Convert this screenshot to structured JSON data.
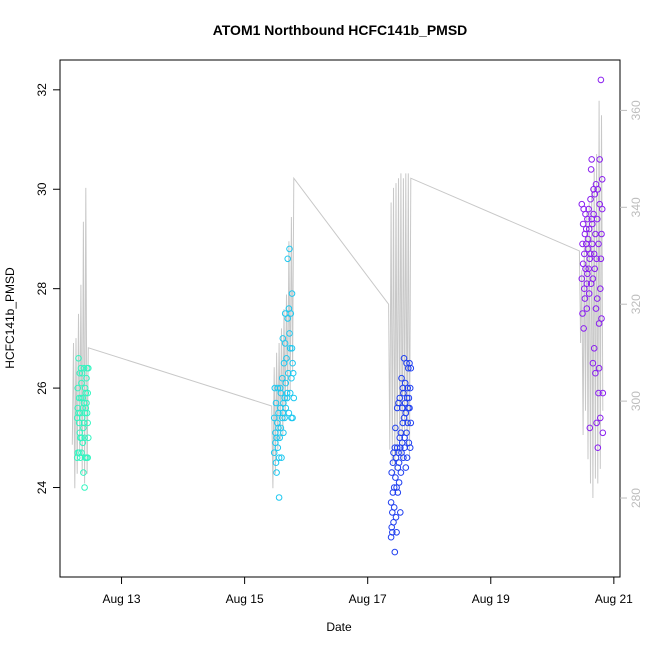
{
  "chart_data": {
    "type": "scatter",
    "title": "ATOM1 Northbound HCFC141b_PMSD",
    "xlabel": "Date",
    "ylabel": "HCFC141b_PMSD",
    "x_ticks": [
      "Aug 13",
      "Aug 15",
      "Aug 17",
      "Aug 19",
      "Aug 21"
    ],
    "x_tick_values": [
      13,
      15,
      17,
      19,
      21
    ],
    "xlim": [
      12.0,
      21.1
    ],
    "y_ticks": [
      24,
      26,
      28,
      30,
      32
    ],
    "ylim": [
      22.2,
      32.6
    ],
    "y2_ticks": [
      280,
      300,
      320,
      340,
      360
    ],
    "y2lim": [
      263.7,
      370.4
    ],
    "grid": false,
    "colors": {
      "day1": "#33f5c0",
      "day2": "#1ec8f0",
      "day3": "#1f3ff0",
      "day4": "#8a1ff0",
      "secondary_line": "#c8c8c8",
      "secondary_axis": "#bdbdbd"
    },
    "series": [
      {
        "group": "day1",
        "x": [
          12.28,
          12.28,
          12.29,
          12.29,
          12.29,
          12.3,
          12.3,
          12.31,
          12.31,
          12.31,
          12.32,
          12.32,
          12.33,
          12.33,
          12.33,
          12.34,
          12.34,
          12.35,
          12.35,
          12.35,
          12.36,
          12.36,
          12.37,
          12.37,
          12.37,
          12.38,
          12.38,
          12.39,
          12.39,
          12.39,
          12.4,
          12.4,
          12.41,
          12.41,
          12.41,
          12.42,
          12.42,
          12.43,
          12.43,
          12.43,
          12.44,
          12.44,
          12.45,
          12.45,
          12.45,
          12.46,
          12.46
        ],
        "y": [
          25.4,
          24.6,
          25.6,
          26.0,
          24.7,
          25.5,
          26.6,
          25.3,
          24.7,
          25.8,
          26.3,
          25.1,
          25.0,
          24.6,
          25.5,
          26.4,
          25.8,
          25.0,
          26.1,
          24.7,
          25.4,
          26.3,
          25.6,
          24.9,
          25.8,
          25.2,
          24.3,
          25.7,
          26.4,
          25.3,
          25.0,
          24.0,
          25.5,
          26.0,
          24.6,
          25.9,
          25.6,
          26.2,
          24.6,
          25.7,
          25.5,
          26.4,
          25.9,
          25.3,
          24.6,
          25.0,
          26.4
        ]
      },
      {
        "group": "day2",
        "x": [
          15.48,
          15.48,
          15.49,
          15.5,
          15.5,
          15.51,
          15.51,
          15.52,
          15.52,
          15.53,
          15.54,
          15.54,
          15.55,
          15.55,
          15.56,
          15.56,
          15.57,
          15.58,
          15.58,
          15.59,
          15.59,
          15.6,
          15.61,
          15.61,
          15.62,
          15.62,
          15.63,
          15.63,
          15.64,
          15.65,
          15.65,
          15.66,
          15.66,
          15.67,
          15.67,
          15.68,
          15.69,
          15.69,
          15.7,
          15.7,
          15.71,
          15.72,
          15.72,
          15.73,
          15.73,
          15.74,
          15.74,
          15.75,
          15.76,
          15.76,
          15.77,
          15.77,
          15.78,
          15.78,
          15.79,
          15.8
        ],
        "y": [
          24.7,
          25.4,
          26.0,
          24.9,
          25.1,
          24.5,
          25.7,
          25.0,
          24.3,
          25.3,
          26.0,
          24.8,
          25.2,
          25.5,
          23.8,
          24.6,
          25.0,
          25.6,
          26.0,
          25.9,
          25.2,
          24.6,
          25.4,
          26.2,
          25.5,
          27.0,
          25.7,
          25.1,
          26.5,
          25.8,
          25.4,
          26.9,
          27.5,
          25.6,
          26.1,
          26.6,
          25.9,
          25.8,
          27.4,
          28.6,
          26.3,
          25.5,
          27.6,
          28.8,
          27.1,
          25.9,
          26.8,
          27.5,
          26.2,
          25.4,
          26.8,
          27.9,
          25.4,
          26.5,
          26.3,
          25.8
        ]
      },
      {
        "group": "day3",
        "x": [
          17.38,
          17.38,
          17.39,
          17.39,
          17.4,
          17.4,
          17.41,
          17.41,
          17.42,
          17.42,
          17.43,
          17.43,
          17.44,
          17.44,
          17.45,
          17.45,
          17.46,
          17.46,
          17.47,
          17.47,
          17.48,
          17.48,
          17.49,
          17.49,
          17.5,
          17.5,
          17.51,
          17.51,
          17.52,
          17.52,
          17.53,
          17.53,
          17.54,
          17.54,
          17.55,
          17.55,
          17.56,
          17.56,
          17.57,
          17.57,
          17.58,
          17.58,
          17.59,
          17.59,
          17.6,
          17.6,
          17.61,
          17.61,
          17.62,
          17.62,
          17.63,
          17.63,
          17.64,
          17.64,
          17.65,
          17.65,
          17.66,
          17.66,
          17.67,
          17.67,
          17.68,
          17.68,
          17.69,
          17.69,
          17.7,
          17.7
        ],
        "y": [
          23.0,
          23.7,
          23.2,
          24.3,
          23.5,
          23.1,
          24.5,
          23.9,
          23.3,
          24.7,
          24.0,
          23.6,
          24.8,
          22.7,
          24.2,
          25.2,
          23.4,
          24.6,
          24.0,
          23.1,
          24.8,
          25.6,
          24.4,
          23.9,
          24.7,
          25.7,
          24.1,
          24.5,
          25.8,
          25.0,
          24.8,
          23.5,
          24.3,
          25.1,
          26.2,
          24.7,
          25.6,
          24.9,
          25.3,
          26.0,
          24.6,
          25.9,
          26.6,
          25.4,
          24.8,
          25.0,
          26.1,
          25.7,
          25.5,
          24.4,
          26.5,
          25.1,
          25.8,
          24.6,
          26.0,
          25.3,
          25.6,
          26.4,
          24.9,
          25.8,
          26.5,
          25.6,
          26.0,
          24.8,
          25.3,
          26.4
        ]
      },
      {
        "group": "day4",
        "x": [
          20.48,
          20.48,
          20.49,
          20.49,
          20.5,
          20.5,
          20.51,
          20.51,
          20.52,
          20.52,
          20.53,
          20.53,
          20.54,
          20.54,
          20.55,
          20.55,
          20.56,
          20.56,
          20.57,
          20.57,
          20.58,
          20.58,
          20.59,
          20.59,
          20.6,
          20.6,
          20.61,
          20.61,
          20.62,
          20.62,
          20.63,
          20.63,
          20.64,
          20.64,
          20.65,
          20.65,
          20.66,
          20.66,
          20.67,
          20.67,
          20.68,
          20.68,
          20.69,
          20.69,
          20.7,
          20.7,
          20.71,
          20.71,
          20.72,
          20.72,
          20.73,
          20.73,
          20.74,
          20.74,
          20.75,
          20.75,
          20.76,
          20.76,
          20.77,
          20.77,
          20.78,
          20.78,
          20.79,
          20.79,
          20.8,
          20.8,
          20.81,
          20.81,
          20.82,
          20.82
        ],
        "y": [
          28.2,
          29.7,
          27.5,
          28.9,
          28.5,
          29.3,
          27.2,
          29.6,
          28.0,
          28.7,
          29.1,
          27.8,
          29.5,
          28.4,
          28.9,
          29.2,
          28.1,
          27.6,
          29.4,
          28.3,
          29.0,
          28.8,
          29.6,
          28.4,
          27.9,
          29.2,
          28.6,
          25.2,
          29.8,
          28.7,
          30.4,
          28.1,
          29.4,
          30.6,
          28.9,
          29.3,
          26.5,
          28.2,
          30.0,
          29.5,
          28.7,
          26.8,
          29.9,
          28.4,
          26.3,
          29.1,
          27.6,
          30.1,
          28.6,
          25.3,
          29.4,
          27.8,
          24.8,
          30.0,
          25.9,
          28.9,
          26.4,
          27.3,
          30.6,
          29.7,
          28.0,
          25.4,
          32.2,
          28.6,
          29.1,
          27.4,
          30.2,
          29.6,
          25.1,
          25.9
        ]
      }
    ],
    "secondary_series": {
      "x": [
        12.2,
        12.22,
        12.24,
        12.26,
        12.28,
        12.3,
        12.32,
        12.34,
        12.36,
        12.38,
        12.4,
        12.42,
        12.44,
        12.46,
        15.44,
        15.46,
        15.48,
        15.5,
        15.52,
        15.54,
        15.56,
        15.58,
        15.6,
        15.62,
        15.64,
        15.66,
        15.68,
        15.7,
        15.72,
        15.74,
        15.76,
        15.78,
        15.8,
        17.34,
        17.36,
        17.38,
        17.4,
        17.42,
        17.44,
        17.46,
        17.48,
        17.5,
        17.52,
        17.54,
        17.56,
        17.58,
        17.6,
        17.62,
        17.64,
        17.66,
        17.68,
        17.7,
        20.44,
        20.46,
        20.48,
        20.5,
        20.52,
        20.54,
        20.56,
        20.58,
        20.6,
        20.62,
        20.64,
        20.66,
        20.68,
        20.7,
        20.72,
        20.74,
        20.76,
        20.78,
        20.8,
        20.82
      ],
      "y": [
        291,
        312,
        282,
        313,
        285,
        318,
        290,
        324,
        285,
        337,
        283,
        344,
        285,
        311,
        299,
        282,
        307,
        285,
        310,
        290,
        312,
        292,
        315,
        293,
        319,
        296,
        322,
        300,
        333,
        302,
        338,
        306,
        346,
        320,
        290,
        341,
        287,
        344,
        285,
        345,
        289,
        346,
        290,
        347,
        288,
        346,
        293,
        347,
        290,
        347,
        288,
        346,
        331,
        312,
        327,
        293,
        333,
        298,
        339,
        288,
        341,
        283,
        344,
        280,
        348,
        284,
        351,
        283,
        362,
        286,
        359,
        298
      ]
    }
  }
}
